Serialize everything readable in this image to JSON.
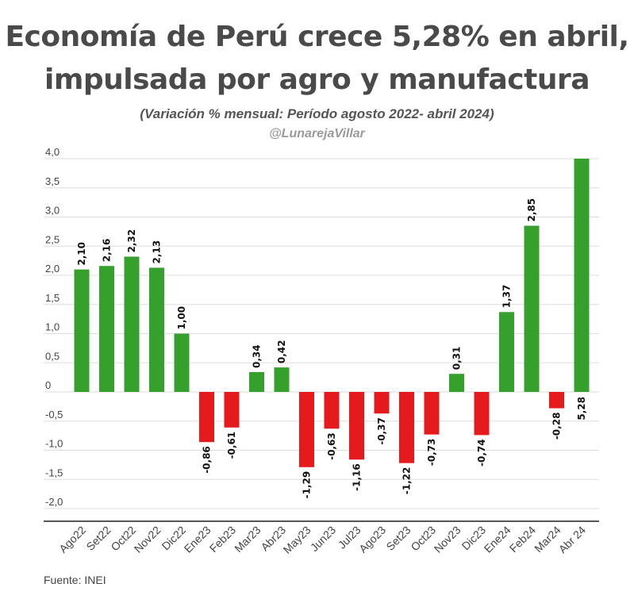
{
  "header": {
    "title_line1": "Economía de Perú crece 5,28% en abril,",
    "title_line2": "impulsada por agro y manufactura",
    "subtitle": "(Variación % mensual: Período agosto 2022- abril 2024)",
    "handle": "@LunarejaVillar"
  },
  "footer": {
    "source": "Fuente: INEI"
  },
  "colors": {
    "positive": "#36a02d",
    "negative": "#e41a1c",
    "grid": "#dddddd",
    "axis": "#555555"
  },
  "chart_data": {
    "type": "bar",
    "title": "Economía de Perú crece 5,28% en abril, impulsada por agro y manufactura",
    "subtitle": "(Variación % mensual: Período agosto 2022- abril 2024)",
    "xlabel": "",
    "ylabel": "",
    "ylim": [
      -2.0,
      4.0
    ],
    "grid": true,
    "yticks": [
      4.0,
      3.5,
      3.0,
      2.5,
      2.0,
      1.5,
      1.0,
      0.5,
      0,
      -0.5,
      -1.0,
      -1.5,
      -2.0
    ],
    "ytick_labels": [
      "4,0",
      "3,5",
      "3,0",
      "2,5",
      "2,0",
      "1,5",
      "1,0",
      "0,5",
      "0",
      "-0,5",
      "-1,0",
      "-1,5",
      "-2,0"
    ],
    "categories": [
      "Ago22",
      "Set22",
      "Oct22",
      "Nov22",
      "Dic22",
      "Ene23",
      "Feb23",
      "Mar23",
      "Abr23",
      "May23",
      "Jun23",
      "Jul23",
      "Ago23",
      "Set23",
      "Oct23",
      "Nov23",
      "Dic23",
      "Ene24",
      "Feb24",
      "Mar24",
      "Abr 24"
    ],
    "values": [
      2.1,
      2.16,
      2.32,
      2.13,
      1.0,
      -0.86,
      -0.61,
      0.34,
      0.42,
      -1.29,
      -0.63,
      -1.16,
      -0.37,
      -1.22,
      -0.73,
      0.31,
      -0.74,
      1.37,
      2.85,
      -0.28,
      5.28
    ],
    "value_labels": [
      "2,10",
      "2,16",
      "2,32",
      "2,13",
      "1,00",
      "-0,86",
      "-0,61",
      "0,34",
      "0,42",
      "-1,29",
      "-0,63",
      "-1,16",
      "-0,37",
      "-1,22",
      "-0,73",
      "0,31",
      "-0,74",
      "1,37",
      "2,85",
      "-0,28",
      "5,28"
    ]
  }
}
